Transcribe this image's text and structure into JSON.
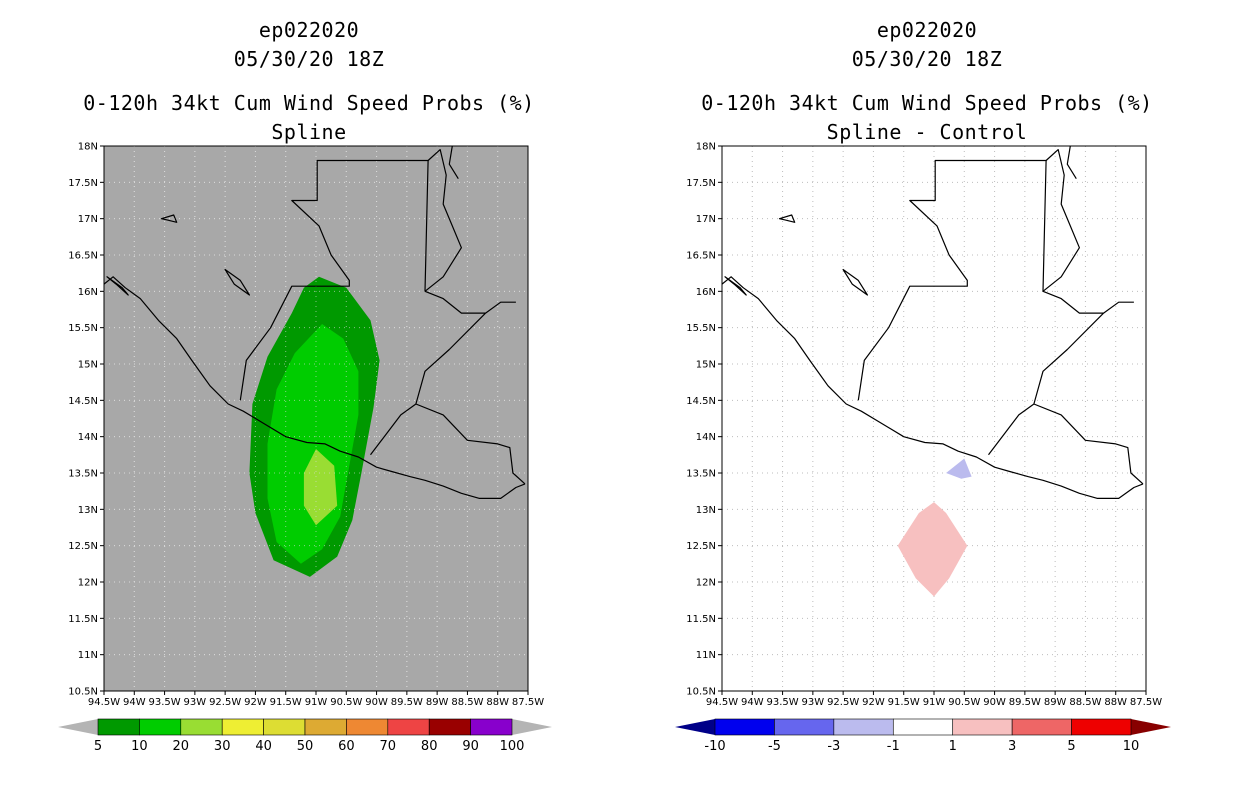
{
  "left_panel": {
    "storm_id": "ep022020",
    "datetime": "05/30/20 18Z",
    "product": "0-120h 34kt Cum Wind Speed Probs (%)",
    "subtitle": "Spline",
    "background_color": "#a8a8a8",
    "colorbar": {
      "colors": [
        "#009900",
        "#00cc00",
        "#99dd33",
        "#eeee33",
        "#dddd33",
        "#ddaa33",
        "#ee8833",
        "#ee4444",
        "#990000",
        "#8800cc"
      ],
      "end_colors": [
        "#b4b4b4",
        "#b4b4b4"
      ],
      "labels": [
        "5",
        "10",
        "20",
        "30",
        "40",
        "50",
        "60",
        "70",
        "80",
        "90",
        "100"
      ]
    }
  },
  "right_panel": {
    "storm_id": "ep022020",
    "datetime": "05/30/20 18Z",
    "product": "0-120h 34kt Cum Wind Speed Probs (%)",
    "subtitle": "Spline - Control",
    "background_color": "#ffffff",
    "colorbar": {
      "colors": [
        "#0000ee",
        "#6666ee",
        "#bbbbee",
        "#ffffff",
        "#f7c0c0",
        "#ee6666",
        "#ee0000"
      ],
      "end_colors": [
        "#000088",
        "#880000"
      ],
      "labels": [
        "-10",
        "-5",
        "-3",
        "-1",
        "1",
        "3",
        "5",
        "10"
      ]
    }
  },
  "axes": {
    "lat_labels": [
      "18N",
      "17.5N",
      "17N",
      "16.5N",
      "16N",
      "15.5N",
      "15N",
      "14.5N",
      "14N",
      "13.5N",
      "13N",
      "12.5N",
      "12N",
      "11.5N",
      "11N",
      "10.5N"
    ],
    "lon_labels": [
      "94.5W",
      "94W",
      "93.5W",
      "93W",
      "92.5W",
      "92W",
      "91.5W",
      "91W",
      "90.5W",
      "90W",
      "89.5W",
      "89W",
      "88.5W",
      "88W",
      "87.5W"
    ]
  }
}
